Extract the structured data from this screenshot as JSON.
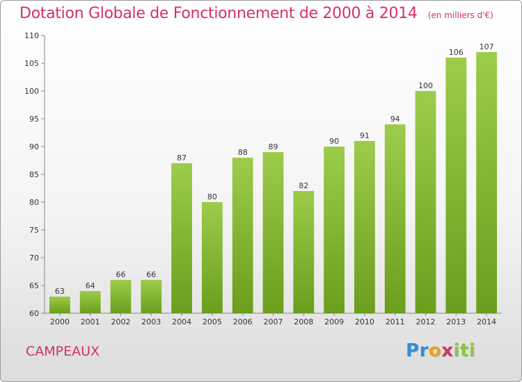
{
  "chart_data": {
    "type": "bar",
    "title": "Dotation Globale de Fonctionnement de 2000 à 2014",
    "subtitle": "(en milliers d'€)",
    "categories": [
      "2000",
      "2001",
      "2002",
      "2003",
      "2004",
      "2005",
      "2006",
      "2007",
      "2008",
      "2009",
      "2010",
      "2011",
      "2012",
      "2013",
      "2014"
    ],
    "values": [
      63,
      64,
      66,
      66,
      87,
      80,
      88,
      89,
      82,
      90,
      91,
      94,
      100,
      106,
      107
    ],
    "ylim": [
      60,
      110
    ],
    "yticks": [
      60,
      65,
      70,
      75,
      80,
      85,
      90,
      95,
      100,
      105,
      110
    ],
    "grid": false,
    "bar_color_top": "#9ccc4a",
    "bar_color_bottom": "#6a9e1c"
  },
  "footer": {
    "commune": "CAMPEAUX",
    "brand_letters": [
      {
        "ch": "P",
        "color": "#2e8fd4"
      },
      {
        "ch": "r",
        "color": "#2e8fd4"
      },
      {
        "ch": "o",
        "color": "#e8a21a"
      },
      {
        "ch": "x",
        "color": "#d2306a"
      },
      {
        "ch": "i",
        "color": "#8cc63f"
      },
      {
        "ch": "t",
        "color": "#8cc63f"
      },
      {
        "ch": "i",
        "color": "#8cc63f"
      }
    ]
  }
}
